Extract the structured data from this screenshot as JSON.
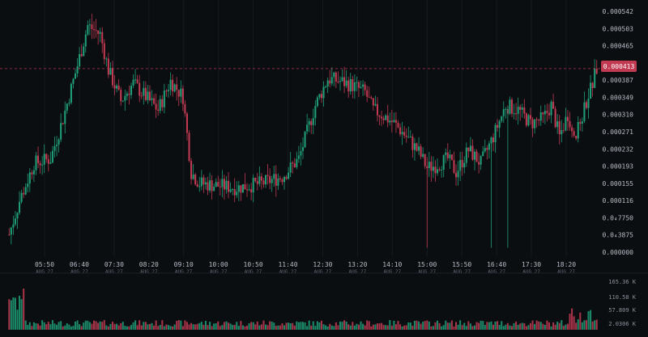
{
  "colors": {
    "up": "#1f9e78",
    "down": "#c23a52",
    "grid": "#161b21",
    "bg": "#0b0e11",
    "axis": "#b7bdc6"
  },
  "price_axis": {
    "labels": [
      "0.000542",
      "0.000503",
      "0.000465",
      "0.000426",
      "0.000387",
      "0.000349",
      "0.000310",
      "0.000271",
      "0.000232",
      "0.000193",
      "0.000155",
      "0.000116",
      "0.0₄7750",
      "0.0₄3875",
      "0.000000"
    ],
    "current_price_tag": "0.000413"
  },
  "time_axis": {
    "labels": [
      "05:50",
      "06:40",
      "07:30",
      "08:20",
      "09:10",
      "10:00",
      "10:50",
      "11:40",
      "12:30",
      "13:20",
      "14:10",
      "15:00",
      "15:50",
      "16:40",
      "17:30",
      "18:20"
    ],
    "date_label": "AUG 27"
  },
  "volume_axis": {
    "labels": [
      "165.36 K",
      "110.58 K",
      "57.809 K",
      "2.0306 K"
    ]
  },
  "chart_data": {
    "type": "candlestick",
    "x_time_labels": [
      "05:50",
      "06:40",
      "07:30",
      "08:20",
      "09:10",
      "10:00",
      "10:50",
      "11:40",
      "12:30",
      "13:20",
      "14:10",
      "15:00",
      "15:50",
      "16:40",
      "17:30",
      "18:20"
    ],
    "ylim": [
      0,
      0.000542
    ],
    "last_price": 0.000413,
    "volume_ylim": [
      2030.6,
      165360
    ]
  }
}
